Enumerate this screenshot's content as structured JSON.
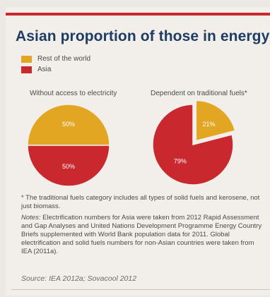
{
  "title": "Asian proportion of those in energy poverty",
  "legend": [
    {
      "label": "Rest of the world",
      "color": "#e3a623"
    },
    {
      "label": "Asia",
      "color": "#c8282e"
    }
  ],
  "chart_data": [
    {
      "type": "pie",
      "title": "Without access to electricity",
      "slices": [
        {
          "label": "Rest of the world",
          "value": 50,
          "value_label": "50%",
          "color": "#e3a623"
        },
        {
          "label": "Asia",
          "value": 50,
          "value_label": "50%",
          "color": "#c8282e"
        }
      ]
    },
    {
      "type": "pie",
      "title": "Dependent on traditional fuels*",
      "slices": [
        {
          "label": "Rest of the world",
          "value": 21,
          "value_label": "21%",
          "color": "#e3a623",
          "exploded": true
        },
        {
          "label": "Asia",
          "value": 79,
          "value_label": "79%",
          "color": "#c8282e"
        }
      ]
    }
  ],
  "footnote": "* The traditional fuels category includes all types of solid fuels and kerosene, not just biomass.",
  "notes_label": "Notes:",
  "notes_text": "Electrification numbers for Asia were taken from 2012 Rapid Assessment and Gap Analyses and United Nations Development Programme Energy Country Briefs supplemented with World Bank population data for 2011. Global electrification and solid fuels numbers for non-Asian countries were taken from IEA (2011a).",
  "source": "Source: IEA 2012a; Sovacool 2012"
}
